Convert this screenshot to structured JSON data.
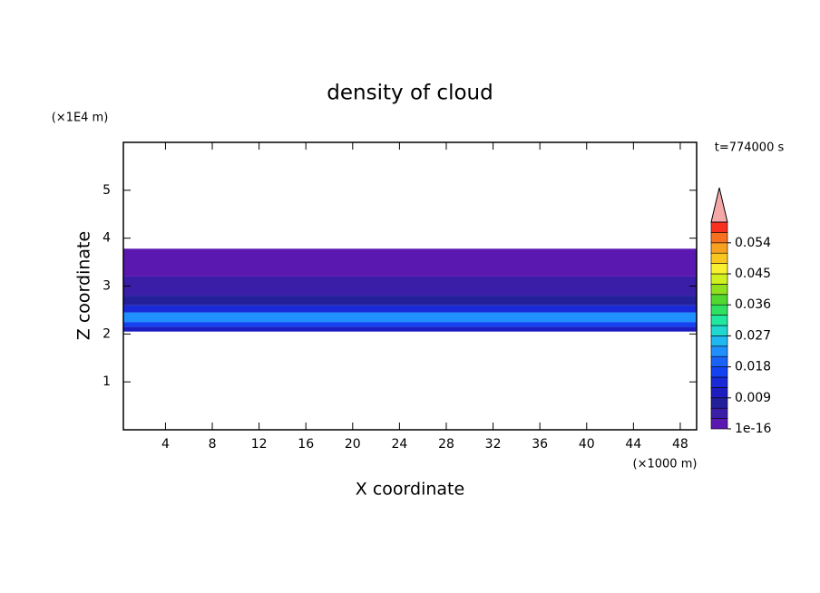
{
  "chart_data": {
    "type": "contour",
    "title": "density of cloud",
    "x_label": "X coordinate",
    "y_label": "Z coordinate",
    "x_unit": "(×1000 m)",
    "y_unit": "(×1E4 m)",
    "time_label": "t=774000 s",
    "xlim": [
      0.4,
      49.4
    ],
    "ylim": [
      0,
      6
    ],
    "xticks": [
      4,
      8,
      12,
      16,
      20,
      24,
      28,
      32,
      36,
      40,
      44,
      48
    ],
    "yticks": [
      1,
      2,
      3,
      4,
      5
    ],
    "layers": [
      {
        "zlim": [
          2.05,
          2.15
        ],
        "value": 0.01
      },
      {
        "zlim": [
          2.15,
          2.25
        ],
        "value": 0.016
      },
      {
        "zlim": [
          2.25,
          2.45
        ],
        "value": 0.022
      },
      {
        "zlim": [
          2.45,
          2.6
        ],
        "value": 0.013
      },
      {
        "zlim": [
          2.6,
          2.8
        ],
        "value": 0.007
      },
      {
        "zlim": [
          2.8,
          3.2
        ],
        "value": 0.004
      },
      {
        "zlim": [
          3.2,
          3.78
        ],
        "value": 0.001
      }
    ],
    "colorbar": {
      "levels": [
        1e-16,
        0.003,
        0.006,
        0.009,
        0.012,
        0.015,
        0.018,
        0.021,
        0.024,
        0.027,
        0.03,
        0.033,
        0.036,
        0.039,
        0.042,
        0.045,
        0.048,
        0.051,
        0.054,
        0.057,
        0.06
      ],
      "colors": [
        "#5a18b0",
        "#3a1ea8",
        "#24209a",
        "#1e1ec0",
        "#1a2ad8",
        "#1442f0",
        "#1a62f8",
        "#2090ff",
        "#20b8f0",
        "#20d8d0",
        "#20e8a0",
        "#30e060",
        "#50d830",
        "#90e020",
        "#d0f020",
        "#f8f030",
        "#f8c820",
        "#f8a020",
        "#f87020",
        "#f83020"
      ],
      "extend_color": "#f4a8a8",
      "ticks": [
        1e-16,
        0.009,
        0.018,
        0.027,
        0.036,
        0.045,
        0.054
      ]
    }
  }
}
